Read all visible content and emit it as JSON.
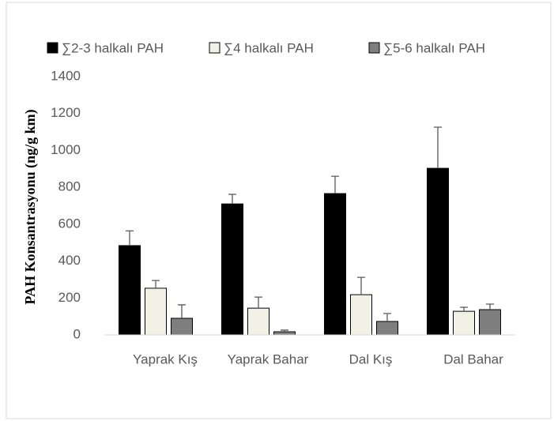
{
  "chart_data": {
    "type": "bar",
    "y_label": "PAH Konsantrasyonu (ng/g km)",
    "categories": [
      "Yaprak Kış",
      "Yaprak Bahar",
      "Dal Kış",
      "Dal Bahar"
    ],
    "series": [
      {
        "name": "∑2-3 halkalı PAH",
        "color": "#000000",
        "values": [
          484,
          710,
          766,
          903
        ],
        "errors": [
          80,
          52,
          94,
          223
        ]
      },
      {
        "name": "∑4 halkalı PAH",
        "color": "#f2f1e6",
        "values": [
          253,
          145,
          218,
          128
        ],
        "errors": [
          42,
          60,
          94,
          22
        ]
      },
      {
        "name": "∑5-6 halkalı PAH",
        "color": "#7f7f7f",
        "values": [
          90,
          17,
          73,
          137
        ],
        "errors": [
          73,
          9,
          43,
          30
        ]
      }
    ],
    "ylim": [
      0,
      1400
    ],
    "yticks": [
      0,
      200,
      400,
      600,
      800,
      1000,
      1200,
      1400
    ],
    "grid": false,
    "legend": "top"
  }
}
